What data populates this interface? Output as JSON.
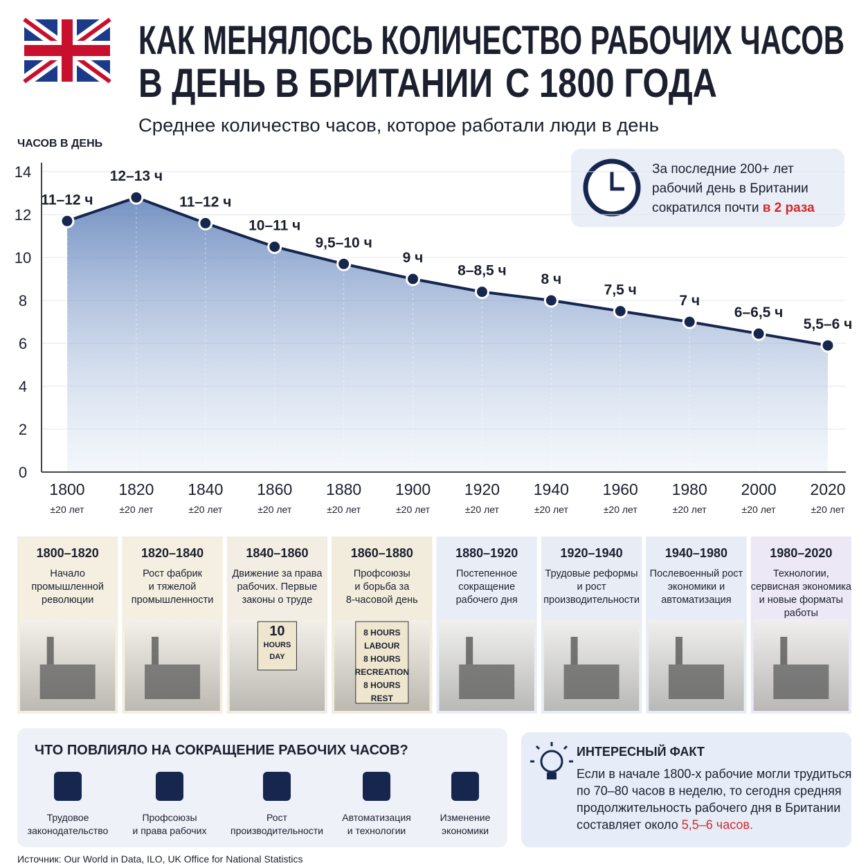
{
  "header": {
    "title_lines": [
      "КАК МЕНЯЛОСЬ КОЛИЧЕСТВО РАБОЧИХ ЧАСОВ",
      "В ДЕНЬ В БРИТАНИИ"
    ],
    "title_highlight": "С 1800 ГОДА"
  },
  "chart_data": {
    "type": "line",
    "subtitle": "Среднее количество часов, которое работали люди в день",
    "y_label": "ЧАСОВ В ДЕНЬ",
    "categories": [
      "1800",
      "1820",
      "1840",
      "1860",
      "1880",
      "1900",
      "1920",
      "1940",
      "1960",
      "1980",
      "2000",
      "2020"
    ],
    "x_note": "±20 лет",
    "values": [
      11.7,
      12.8,
      11.6,
      10.5,
      9.7,
      9.0,
      8.4,
      8.0,
      7.5,
      7.0,
      6.45,
      5.9
    ],
    "value_labels": [
      "11–12 ч",
      "12–13 ч",
      "11–12 ч",
      "10–11 ч",
      "9,5–10 ч",
      "9 ч",
      "8–8,5 ч",
      "8 ч",
      "7,5 ч",
      "7 ч",
      "6–6,5 ч",
      "5,5–6 ч"
    ],
    "color": "#16264f",
    "ylim": [
      0,
      14
    ],
    "yticks": [
      0,
      2,
      4,
      6,
      8,
      10,
      12,
      14
    ],
    "grid": true
  },
  "callout": {
    "lines": [
      "За последние 200+ лет",
      "рабочий день в Британии",
      "сократился почти"
    ],
    "highlight": "в 2 раза"
  },
  "periods": [
    {
      "range": "1800–1820",
      "lines": [
        "Начало",
        "промышленной",
        "революции"
      ]
    },
    {
      "range": "1820–1840",
      "lines": [
        "Рост фабрик",
        "и тяжелой",
        "промышленности"
      ]
    },
    {
      "range": "1840–1860",
      "lines": [
        "Движение за права",
        "рабочих. Первые",
        "законы о труде"
      ],
      "sign": [
        "10",
        "HOURS",
        "DAY"
      ]
    },
    {
      "range": "1860–1880",
      "lines": [
        "Профсоюзы",
        "и борьба за",
        "8-часовой день"
      ],
      "sign": [
        "8 HOURS",
        "LABOUR",
        "8 HOURS",
        "RECREATION",
        "8 HOURS",
        "REST"
      ]
    },
    {
      "range": "1880–1920",
      "lines": [
        "Постепенное",
        "сокращение",
        "рабочего дня"
      ]
    },
    {
      "range": "1920–1940",
      "lines": [
        "Трудовые реформы",
        "и рост",
        "производительности"
      ]
    },
    {
      "range": "1940–1980",
      "lines": [
        "Послевоенный рост",
        "экономики и",
        "автоматизация"
      ]
    },
    {
      "range": "1980–2020",
      "lines": [
        "Технологии,",
        "сервисная экономика",
        "и новые форматы",
        "работы"
      ]
    }
  ],
  "factors": {
    "title": "ЧТО ПОВЛИЯЛО НА СОКРАЩЕНИЕ РАБОЧИХ ЧАСОВ?",
    "items": [
      [
        "Трудовое",
        "законодательство"
      ],
      [
        "Профсоюзы",
        "и права рабочих"
      ],
      [
        "Рост",
        "производительности"
      ],
      [
        "Автоматизация",
        "и технологии"
      ],
      [
        "Изменение",
        "экономики"
      ]
    ]
  },
  "fact": {
    "title": "ИНТЕРЕСНЫЙ ФАКТ",
    "lines": [
      "Если в начале 1800-х рабочие могли трудиться",
      "по 70–80 часов в неделю, то сегодня средняя",
      "продолжительность рабочего дня в Британии",
      "составляет около"
    ],
    "highlight": "5,5–6 часов."
  },
  "source": "Источник: Our World in Data, ILO, UK Office for National Statistics"
}
